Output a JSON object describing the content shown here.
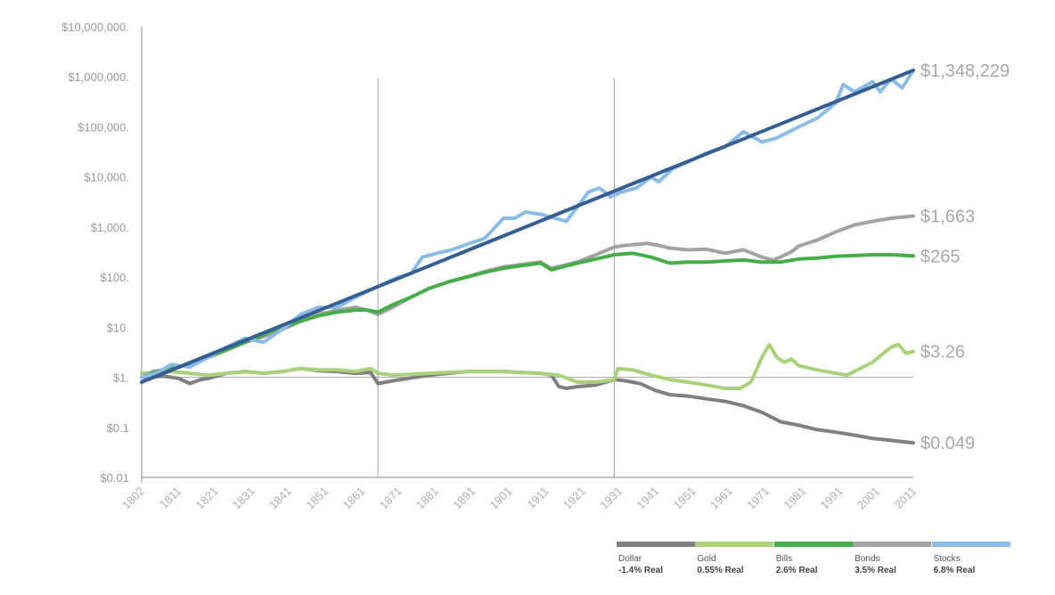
{
  "chart_data": {
    "type": "line",
    "y_scale": "log",
    "ylim": [
      0.01,
      10000000
    ],
    "y_tick_labels": [
      "$10,000,000.",
      "$1,000,000.",
      "$100,000.",
      "$10,000.",
      "$1,000.",
      "$100.",
      "$10.",
      "$1.",
      "$0.1",
      "$0.01"
    ],
    "y_tick_values": [
      10000000,
      1000000,
      100000,
      10000,
      1000,
      100,
      10,
      1,
      0.1,
      0.01
    ],
    "x_tick_labels": [
      "1802",
      "1811",
      "1821",
      "1831",
      "1841",
      "1851",
      "1861",
      "1871",
      "1881",
      "1891",
      "1901",
      "1911",
      "1921",
      "1931",
      "1941",
      "1951",
      "1961",
      "1971",
      "1981",
      "1991",
      "2001",
      "2011"
    ],
    "xlim": [
      1802,
      2011
    ],
    "vertical_reference_lines": [
      1866,
      1930
    ],
    "horizontal_reference_line": 1,
    "colors": {
      "dollar": "#808080",
      "gold": "#a9d27b",
      "bills": "#45ad4a",
      "bonds": "#a3a3a3",
      "stocks": "#8bbce8",
      "trend": "#365e93",
      "reference": "#b3b3b3",
      "axis": "#a0a0a0"
    },
    "series": [
      {
        "key": "stocks",
        "name": "Stocks",
        "rate": "6.8% Real",
        "end_label": "$1,348,229",
        "x": [
          1802,
          1806,
          1810,
          1815,
          1820,
          1825,
          1830,
          1835,
          1840,
          1845,
          1850,
          1855,
          1860,
          1865,
          1870,
          1875,
          1878,
          1882,
          1886,
          1890,
          1895,
          1900,
          1903,
          1906,
          1910,
          1914,
          1917,
          1920,
          1923,
          1926,
          1929,
          1932,
          1936,
          1940,
          1942,
          1946,
          1950,
          1955,
          1960,
          1965,
          1968,
          1970,
          1974,
          1980,
          1985,
          1990,
          1992,
          1995,
          2000,
          2002,
          2005,
          2008,
          2011
        ],
        "values": [
          1,
          1.2,
          1.8,
          1.6,
          2.5,
          4,
          6,
          5,
          9,
          18,
          25,
          25,
          40,
          60,
          90,
          120,
          250,
          300,
          350,
          450,
          600,
          1500,
          1500,
          2000,
          1800,
          1500,
          1300,
          2500,
          5000,
          6000,
          4000,
          5000,
          6000,
          10000,
          8000,
          15000,
          20000,
          30000,
          40000,
          80000,
          60000,
          50000,
          60000,
          100000,
          150000,
          300000,
          700000,
          500000,
          800000,
          500000,
          900000,
          600000,
          1348229
        ]
      },
      {
        "key": "bonds",
        "name": "Bonds",
        "rate": "3.5% Real",
        "end_label": "$1,663",
        "x": [
          1802,
          1805,
          1810,
          1815,
          1820,
          1825,
          1830,
          1835,
          1840,
          1845,
          1850,
          1855,
          1860,
          1863,
          1866,
          1870,
          1875,
          1880,
          1885,
          1890,
          1895,
          1900,
          1905,
          1910,
          1913,
          1916,
          1920,
          1925,
          1930,
          1933,
          1936,
          1939,
          1942,
          1945,
          1950,
          1955,
          1960,
          1965,
          1970,
          1973,
          1975,
          1978,
          1980,
          1985,
          1990,
          1995,
          2000,
          2005,
          2011
        ],
        "values": [
          1,
          1.3,
          1.5,
          1.8,
          2.5,
          3.5,
          5,
          6.5,
          9,
          13,
          18,
          22,
          25,
          22,
          18,
          25,
          40,
          60,
          80,
          100,
          130,
          160,
          180,
          200,
          150,
          170,
          200,
          280,
          400,
          430,
          450,
          470,
          430,
          380,
          350,
          360,
          300,
          350,
          250,
          220,
          250,
          320,
          420,
          550,
          800,
          1100,
          1300,
          1500,
          1663
        ]
      },
      {
        "key": "bills",
        "name": "Bills",
        "rate": "2.6% Real",
        "end_label": "$265",
        "x": [
          1802,
          1805,
          1810,
          1815,
          1820,
          1825,
          1830,
          1835,
          1840,
          1845,
          1850,
          1855,
          1860,
          1863,
          1866,
          1870,
          1875,
          1880,
          1885,
          1890,
          1895,
          1900,
          1905,
          1910,
          1913,
          1916,
          1920,
          1925,
          1930,
          1935,
          1940,
          1945,
          1950,
          1955,
          1960,
          1965,
          1970,
          1975,
          1980,
          1985,
          1990,
          1995,
          2000,
          2005,
          2011
        ],
        "values": [
          1,
          1.2,
          1.5,
          1.8,
          2.5,
          3.5,
          5,
          7,
          10,
          13,
          17,
          20,
          22,
          22,
          20,
          28,
          40,
          60,
          80,
          100,
          125,
          150,
          170,
          190,
          140,
          160,
          190,
          230,
          280,
          300,
          250,
          190,
          200,
          200,
          210,
          220,
          200,
          200,
          230,
          240,
          260,
          270,
          280,
          280,
          265
        ]
      },
      {
        "key": "gold",
        "name": "Gold",
        "rate": "0.55% Real",
        "end_label": "$3.26",
        "x": [
          1802,
          1810,
          1815,
          1820,
          1825,
          1830,
          1835,
          1840,
          1845,
          1850,
          1855,
          1860,
          1864,
          1866,
          1870,
          1880,
          1890,
          1900,
          1910,
          1915,
          1920,
          1925,
          1930,
          1931,
          1935,
          1940,
          1945,
          1950,
          1955,
          1960,
          1964,
          1967,
          1970,
          1972,
          1974,
          1976,
          1978,
          1980,
          1985,
          1990,
          1993,
          1995,
          2000,
          2005,
          2007,
          2009,
          2011
        ],
        "values": [
          1.2,
          1.3,
          1.2,
          1.1,
          1.2,
          1.3,
          1.2,
          1.3,
          1.5,
          1.4,
          1.4,
          1.3,
          1.5,
          1.2,
          1.1,
          1.2,
          1.3,
          1.3,
          1.2,
          1.1,
          0.8,
          0.8,
          0.9,
          1.5,
          1.4,
          1.1,
          0.9,
          0.8,
          0.7,
          0.6,
          0.6,
          0.8,
          2.5,
          4.5,
          2.5,
          2,
          2.3,
          1.7,
          1.4,
          1.2,
          1.1,
          1.3,
          2,
          4,
          4.5,
          3,
          3.26
        ]
      },
      {
        "key": "dollar",
        "name": "Dollar",
        "rate": "-1.4% Real",
        "end_label": "$0.049",
        "x": [
          1802,
          1808,
          1812,
          1815,
          1818,
          1820,
          1825,
          1830,
          1835,
          1840,
          1845,
          1850,
          1855,
          1860,
          1864,
          1866,
          1870,
          1880,
          1890,
          1900,
          1910,
          1913,
          1915,
          1917,
          1920,
          1925,
          1930,
          1933,
          1937,
          1941,
          1945,
          1950,
          1955,
          1960,
          1965,
          1970,
          1975,
          1980,
          1985,
          1990,
          1995,
          2000,
          2005,
          2011
        ],
        "values": [
          1,
          1.05,
          0.95,
          0.75,
          0.9,
          0.95,
          1.2,
          1.3,
          1.2,
          1.3,
          1.5,
          1.35,
          1.3,
          1.2,
          1.25,
          0.75,
          0.85,
          1.1,
          1.3,
          1.3,
          1.2,
          1.1,
          0.65,
          0.6,
          0.65,
          0.7,
          0.9,
          0.85,
          0.75,
          0.55,
          0.45,
          0.42,
          0.37,
          0.33,
          0.27,
          0.2,
          0.13,
          0.11,
          0.09,
          0.08,
          0.07,
          0.06,
          0.055,
          0.049
        ]
      }
    ],
    "trend_line": {
      "x": [
        1802,
        2011
      ],
      "values": [
        0.8,
        1348229
      ]
    },
    "legend_position": "bottom-right"
  }
}
